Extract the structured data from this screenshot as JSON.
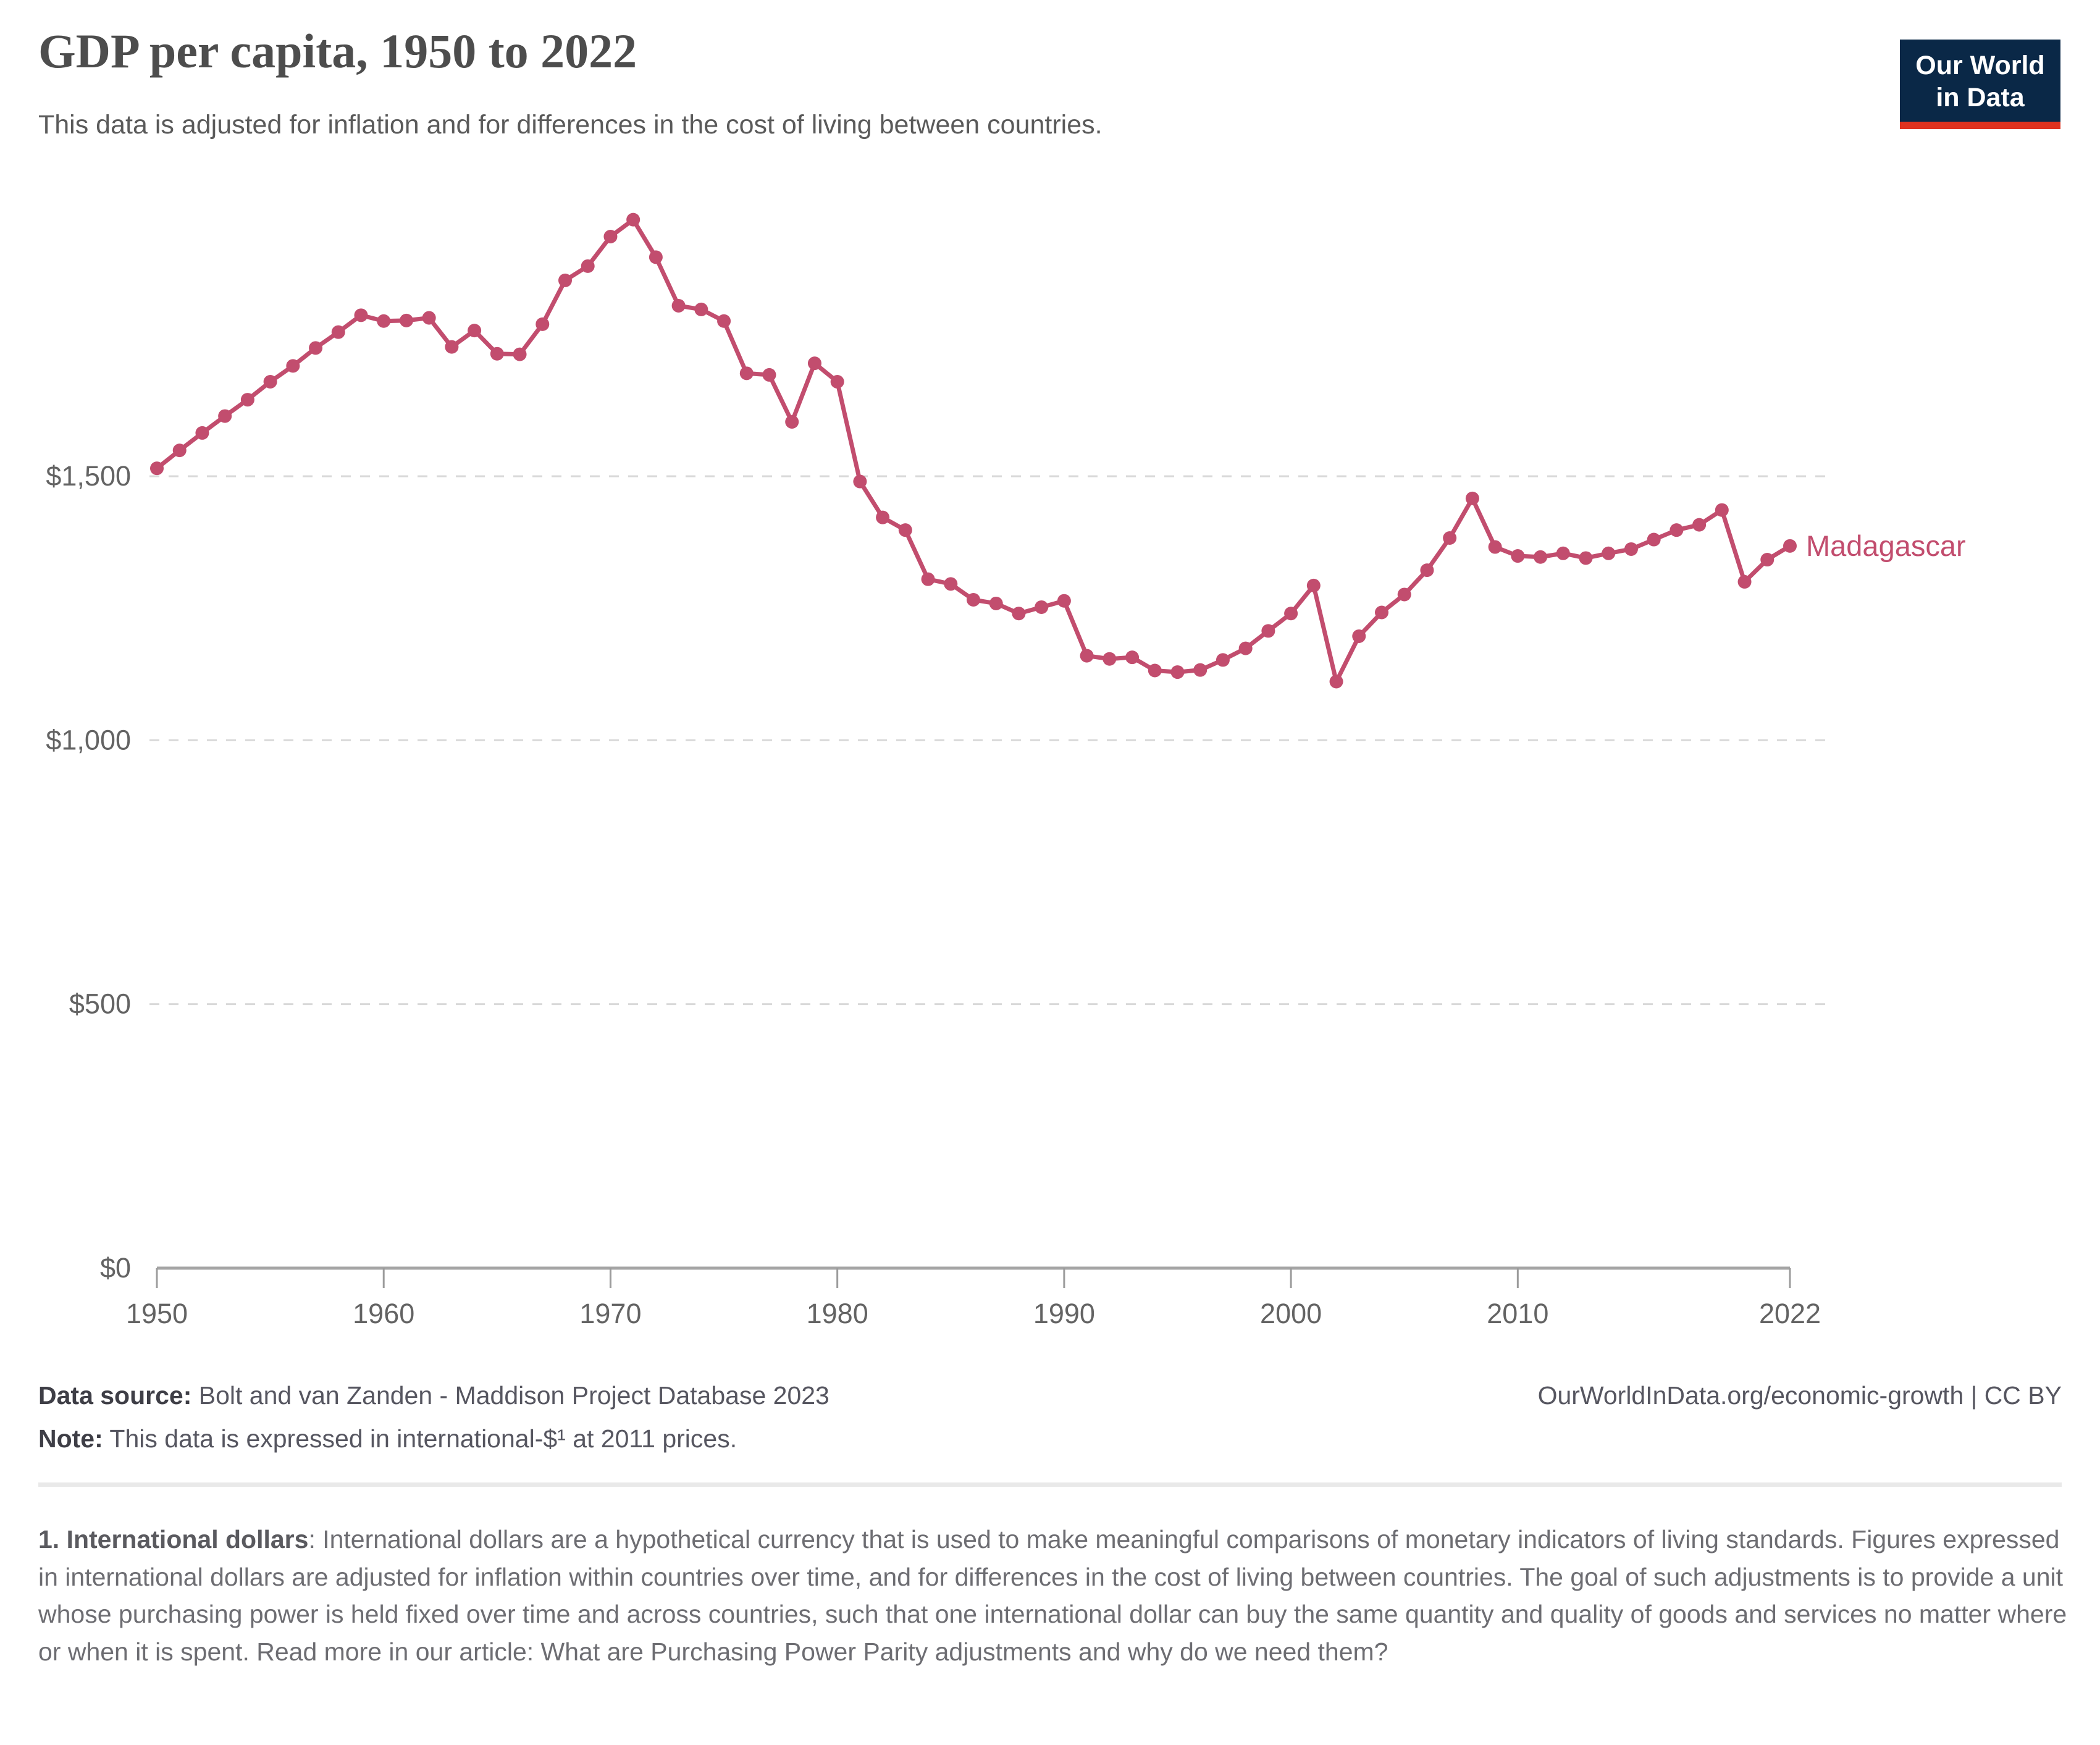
{
  "header": {
    "title": "GDP per capita, 1950 to 2022",
    "subtitle": "This data is adjusted for inflation and for differences in the cost of living between countries."
  },
  "logo": {
    "line1": "Our World",
    "line2": "in Data",
    "bg_color": "#0a2847",
    "accent_color": "#e0321f"
  },
  "chart_data": {
    "type": "line",
    "title": "GDP per capita, 1950 to 2022",
    "xlabel": "",
    "ylabel": "",
    "xlim": [
      1950,
      2022
    ],
    "ylim": [
      0,
      2050
    ],
    "grid": "horizontal dashed",
    "legend_position": "end-of-line label",
    "y_ticks": [
      {
        "value": 0,
        "label": "$0"
      },
      {
        "value": 500,
        "label": "$500"
      },
      {
        "value": 1000,
        "label": "$1,000"
      },
      {
        "value": 1500,
        "label": "$1,500"
      }
    ],
    "x_ticks": [
      {
        "value": 1950,
        "label": "1950"
      },
      {
        "value": 1960,
        "label": "1960"
      },
      {
        "value": 1970,
        "label": "1970"
      },
      {
        "value": 1980,
        "label": "1980"
      },
      {
        "value": 1990,
        "label": "1990"
      },
      {
        "value": 2000,
        "label": "2000"
      },
      {
        "value": 2010,
        "label": "2010"
      },
      {
        "value": 2022,
        "label": "2022"
      }
    ],
    "series": [
      {
        "name": "Madagascar",
        "color": "#c24d6e",
        "unit": "international-$ at 2011 prices",
        "points": [
          [
            1950,
            1515
          ],
          [
            1951,
            1549
          ],
          [
            1952,
            1582
          ],
          [
            1953,
            1614
          ],
          [
            1954,
            1645
          ],
          [
            1955,
            1679
          ],
          [
            1956,
            1709
          ],
          [
            1957,
            1743
          ],
          [
            1958,
            1773
          ],
          [
            1959,
            1805
          ],
          [
            1960,
            1794
          ],
          [
            1961,
            1795
          ],
          [
            1962,
            1800
          ],
          [
            1963,
            1745
          ],
          [
            1964,
            1776
          ],
          [
            1965,
            1732
          ],
          [
            1966,
            1731
          ],
          [
            1967,
            1788
          ],
          [
            1968,
            1871
          ],
          [
            1969,
            1898
          ],
          [
            1970,
            1954
          ],
          [
            1971,
            1986
          ],
          [
            1972,
            1915
          ],
          [
            1973,
            1823
          ],
          [
            1974,
            1816
          ],
          [
            1975,
            1794
          ],
          [
            1976,
            1695
          ],
          [
            1977,
            1692
          ],
          [
            1978,
            1603
          ],
          [
            1979,
            1714
          ],
          [
            1980,
            1679
          ],
          [
            1981,
            1490
          ],
          [
            1982,
            1422
          ],
          [
            1983,
            1398
          ],
          [
            1984,
            1305
          ],
          [
            1985,
            1296
          ],
          [
            1986,
            1266
          ],
          [
            1987,
            1259
          ],
          [
            1988,
            1240
          ],
          [
            1989,
            1252
          ],
          [
            1990,
            1264
          ],
          [
            1991,
            1160
          ],
          [
            1992,
            1154
          ],
          [
            1993,
            1157
          ],
          [
            1994,
            1132
          ],
          [
            1995,
            1129
          ],
          [
            1996,
            1133
          ],
          [
            1997,
            1152
          ],
          [
            1998,
            1174
          ],
          [
            1999,
            1207
          ],
          [
            2000,
            1240
          ],
          [
            2001,
            1293
          ],
          [
            2002,
            1111
          ],
          [
            2003,
            1197
          ],
          [
            2004,
            1242
          ],
          [
            2005,
            1276
          ],
          [
            2006,
            1322
          ],
          [
            2007,
            1383
          ],
          [
            2008,
            1458
          ],
          [
            2009,
            1366
          ],
          [
            2010,
            1349
          ],
          [
            2011,
            1347
          ],
          [
            2012,
            1354
          ],
          [
            2013,
            1345
          ],
          [
            2014,
            1354
          ],
          [
            2015,
            1362
          ],
          [
            2016,
            1380
          ],
          [
            2017,
            1398
          ],
          [
            2018,
            1408
          ],
          [
            2019,
            1436
          ],
          [
            2020,
            1300
          ],
          [
            2021,
            1342
          ],
          [
            2022,
            1368
          ]
        ]
      }
    ]
  },
  "footer": {
    "data_source_label": "Data source:",
    "data_source_value": " Bolt and van Zanden - Maddison Project Database 2023",
    "url_text": "OurWorldInData.org/economic-growth | CC BY",
    "note_label": "Note:",
    "note_value": " This data is expressed in international-$¹ at 2011 prices."
  },
  "footnote": {
    "label": "1. International dollars",
    "body": ": International dollars are a hypothetical currency that is used to make meaningful comparisons of monetary indicators of living standards. Figures expressed in international dollars are adjusted for inflation within countries over time, and for differences in the cost of living between countries. The goal of such adjustments is to provide a unit whose purchasing power is held fixed over time and across countries, such that one international dollar can buy the same quantity and quality of goods and services no matter where or when it is spent. Read more in our article: ",
    "link_text": "What are Purchasing Power Parity adjustments and why do we need them?"
  }
}
